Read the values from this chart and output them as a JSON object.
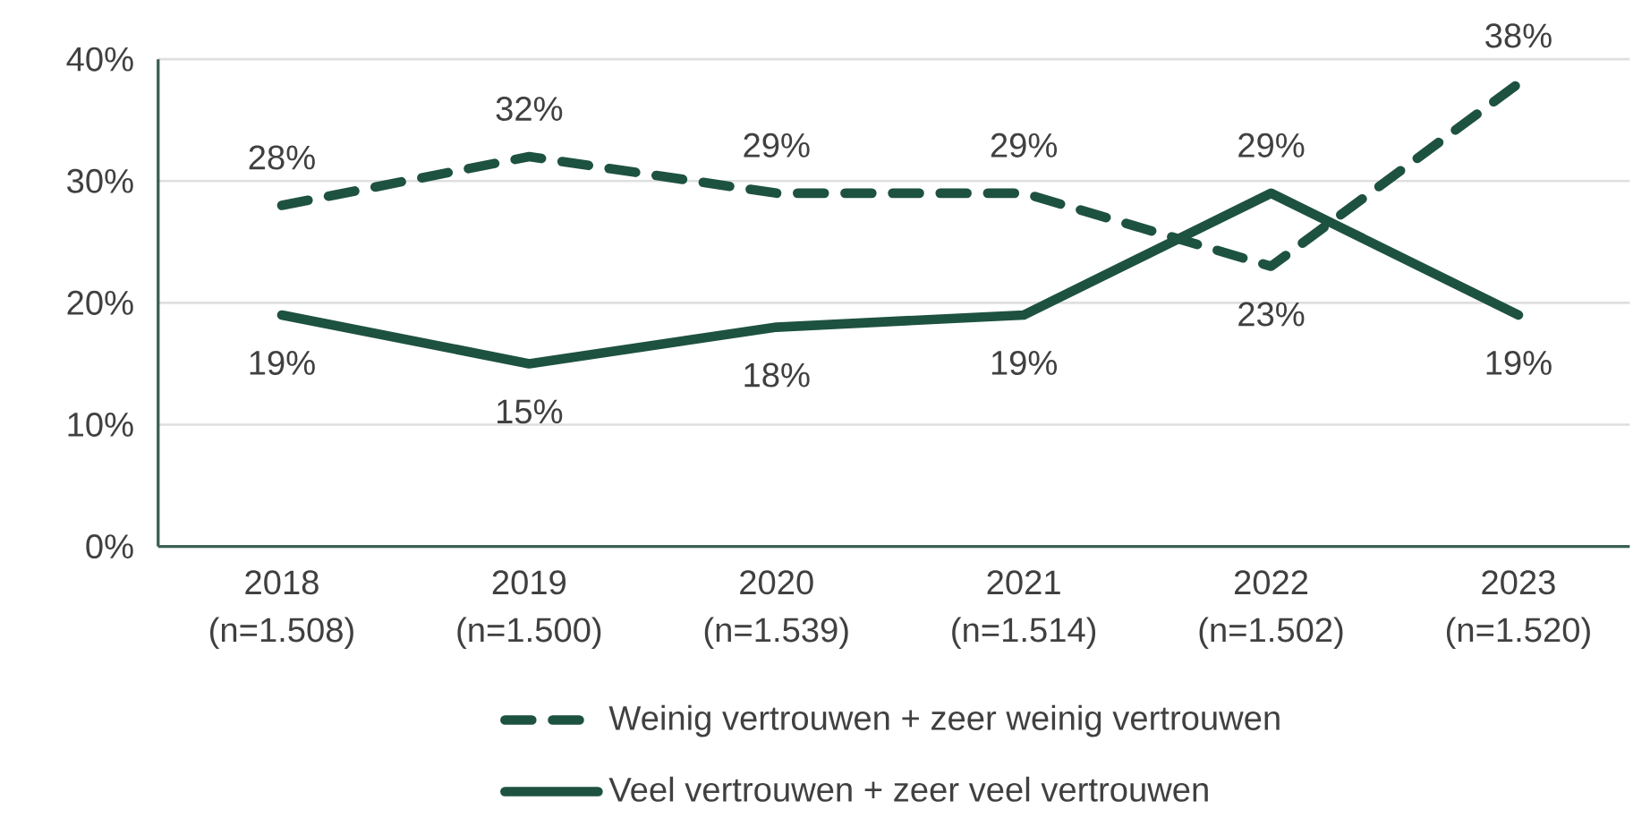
{
  "chart_data": {
    "type": "line",
    "categories": [
      "2018 (n=1.508)",
      "2019 (n=1.500)",
      "2020 (n=1.539)",
      "2021 (n=1.514)",
      "2022 (n=1.502)",
      "2023 (n=1.520)"
    ],
    "series": [
      {
        "name": "Weinig vertrouwen + zeer weinig vertrouwen",
        "color": "#1e5240",
        "line_style": "dashed",
        "values": [
          28,
          32,
          29,
          29,
          23,
          38
        ],
        "value_labels": [
          "28%",
          "32%",
          "29%",
          "29%",
          "23%",
          "38%"
        ]
      },
      {
        "name": "Veel vertrouwen + zeer veel vertrouwen",
        "color": "#1e5240",
        "line_style": "solid",
        "values": [
          19,
          15,
          18,
          19,
          29,
          19
        ],
        "value_labels": [
          "19%",
          "15%",
          "18%",
          "19%",
          "29%",
          "19%"
        ]
      }
    ],
    "ylim": [
      0,
      40
    ],
    "yticks": [
      {
        "value": 0,
        "label": "0%"
      },
      {
        "value": 10,
        "label": "10%"
      },
      {
        "value": 20,
        "label": "20%"
      },
      {
        "value": 30,
        "label": "30%"
      },
      {
        "value": 40,
        "label": "40%"
      }
    ],
    "grid": "y",
    "legend": "bottom",
    "marker": "none"
  }
}
